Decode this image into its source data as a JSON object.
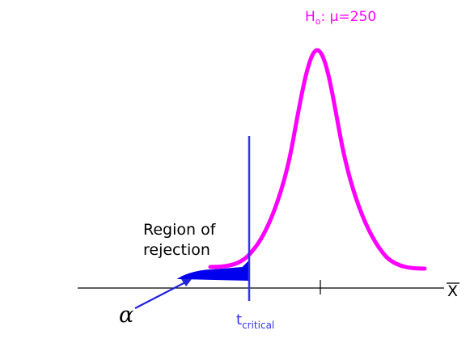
{
  "hypothesis": {
    "H": "H",
    "sub": "o",
    "rest": ": μ=250",
    "color": "#ff00ff"
  },
  "region": {
    "line1": "Region of",
    "line2": "rejection"
  },
  "alpha_symbol": "α",
  "critical": {
    "main": "t",
    "sub": "critical",
    "color": "#3333ee"
  },
  "axis_label": "X",
  "colors": {
    "curve": "#ff00ff",
    "critical_line": "#3333ee",
    "shaded": "#0000ee",
    "arrow": "#2222dd",
    "axis": "#000000"
  }
}
